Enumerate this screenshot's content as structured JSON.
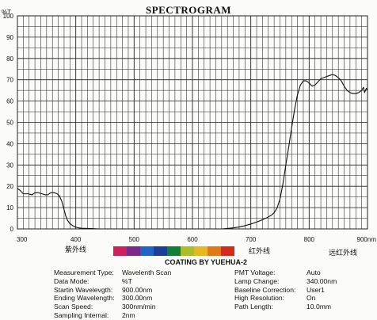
{
  "header": {
    "title": "SPECTROGRAM"
  },
  "colors": {
    "grid": "#222222",
    "curve": "#111111",
    "background": "#fbfbf8"
  },
  "chart_data": {
    "type": "line",
    "title": "SPECTROGRAM",
    "ylabel": "%T",
    "xlim": [
      300,
      900
    ],
    "ylim": [
      0,
      100
    ],
    "x_ticks": [
      {
        "value": 300,
        "label": "300"
      },
      {
        "value": 400,
        "label": "400"
      },
      {
        "value": 500,
        "label": "500"
      },
      {
        "value": 600,
        "label": "600"
      },
      {
        "value": 700,
        "label": "700"
      },
      {
        "value": 800,
        "label": "800"
      },
      {
        "value": 900,
        "label": "900nm"
      }
    ],
    "y_ticks": [
      {
        "value": 0,
        "label": "0"
      },
      {
        "value": 10,
        "label": "10"
      },
      {
        "value": 20,
        "label": "20"
      },
      {
        "value": 30,
        "label": "30"
      },
      {
        "value": 40,
        "label": "40"
      },
      {
        "value": 50,
        "label": "50"
      },
      {
        "value": 60,
        "label": "60"
      },
      {
        "value": 70,
        "label": "70"
      },
      {
        "value": 80,
        "label": "80"
      },
      {
        "value": 90,
        "label": "90"
      },
      {
        "value": 100,
        "label": "100"
      }
    ],
    "grid": true,
    "series": [
      {
        "x": [
          300,
          305,
          310,
          318,
          325,
          330,
          335,
          342,
          348,
          352,
          357,
          363,
          368,
          372,
          376,
          380,
          383,
          386,
          390,
          395,
          400,
          405,
          410,
          420,
          430,
          440,
          450,
          470,
          500,
          550,
          600,
          650,
          660,
          670,
          680,
          690,
          700,
          710,
          720,
          730,
          735,
          740,
          745,
          750,
          755,
          760,
          765,
          770,
          775,
          780,
          785,
          790,
          795,
          800,
          805,
          810,
          815,
          820,
          825,
          830,
          835,
          840,
          845,
          850,
          855,
          860,
          865,
          870,
          875,
          880,
          885,
          890,
          893,
          895,
          898,
          900
        ],
        "y": [
          19,
          18,
          16.5,
          16.5,
          16,
          17,
          17,
          16.5,
          16,
          16,
          17,
          17,
          16.5,
          15.5,
          13,
          9,
          6,
          4,
          2.5,
          1.5,
          0.8,
          0.5,
          0.3,
          0.2,
          0.1,
          0,
          0,
          0,
          0,
          0,
          0,
          0,
          0.2,
          0.5,
          0.9,
          1.5,
          2.3,
          3.2,
          4.3,
          5.6,
          6.4,
          7.6,
          9.8,
          14,
          21,
          30,
          38.5,
          47.5,
          56,
          63,
          67.5,
          69.5,
          69.5,
          68.5,
          67,
          67.5,
          69,
          70.5,
          71,
          71.5,
          72,
          72.5,
          72,
          71,
          69.5,
          67,
          65,
          64,
          63.5,
          63.5,
          64,
          65,
          66.5,
          64,
          66,
          65
        ]
      }
    ],
    "annotations": [
      "紫外线",
      "红外线",
      "远红外线"
    ]
  },
  "spectrum_colors": [
    "#d01f5d",
    "#7a2a8a",
    "#1f63c6",
    "#1a3f9a",
    "#0f7f3a",
    "#a8bf2a",
    "#e6b71e",
    "#e07a18",
    "#d62a1c"
  ],
  "caption": "COATING BY YUEHUA-2",
  "params_left": [
    {
      "key": "Measurement Type:",
      "value": "Wavelenth Scan"
    },
    {
      "key": "Data Mode:",
      "value": "%T"
    },
    {
      "key": "Startin Wavelevgth:",
      "value": "900.00nm"
    },
    {
      "key": "Ending Wavelength:",
      "value": "300.00nm"
    },
    {
      "key": "Scan Speed:",
      "value": "300nm/min"
    },
    {
      "key": "Sampling Internal:",
      "value": "2nm"
    }
  ],
  "params_right": [
    {
      "key": "PMT Voltage:",
      "value": "Auto"
    },
    {
      "key": "Lamp Change:",
      "value": "340.00nm"
    },
    {
      "key": "Baseline Correction:",
      "value": "User1"
    },
    {
      "key": "High Resolution:",
      "value": "On"
    },
    {
      "key": "Path Length:",
      "value": "10.0mm"
    }
  ]
}
